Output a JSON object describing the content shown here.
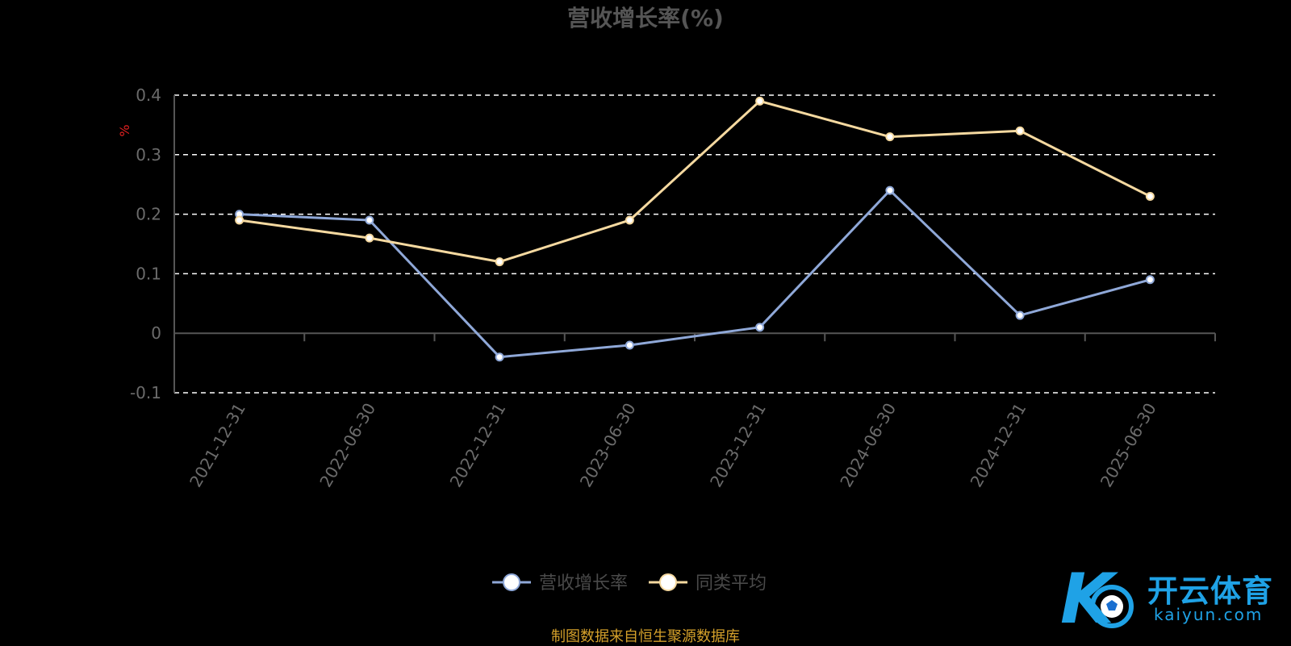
{
  "chart_data": {
    "type": "line",
    "title": "营收增长率(%)",
    "ylabel": "%",
    "x": [
      "2021-12-31",
      "2022-06-30",
      "2022-12-31",
      "2023-06-30",
      "2023-12-31",
      "2024-06-30",
      "2024-12-31",
      "2025-06-30"
    ],
    "series": [
      {
        "name": "营收增长率",
        "values": [
          0.2,
          0.19,
          -0.04,
          -0.02,
          0.01,
          0.24,
          0.03,
          0.09
        ],
        "color": "#8fa8d8"
      },
      {
        "name": "同类平均",
        "values": [
          0.19,
          0.16,
          0.12,
          0.19,
          0.39,
          0.33,
          0.34,
          0.23
        ],
        "color": "#f5d9a0"
      }
    ],
    "yticks": [
      "0.4",
      "0.3",
      "0.2",
      "0.1",
      "0",
      "-0.1"
    ],
    "ylim": [
      -0.1,
      0.4
    ],
    "grid": true,
    "legend_position": "bottom-center"
  },
  "colors": {
    "background": "#000000",
    "title": "#555555",
    "axis_text": "#6b6b6b",
    "ylabel": "#e02020",
    "grid": "#ffffff",
    "source": "#d4a02a",
    "logo": "#1fa2e6"
  },
  "source_note": "制图数据来自恒生聚源数据库",
  "logo": {
    "name": "开云体育",
    "sub": "kaiyun.com"
  }
}
